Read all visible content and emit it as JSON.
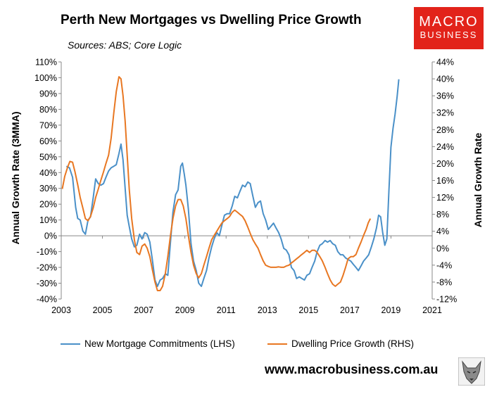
{
  "title": "Perth New Mortgages vs Dwelling Price Growth",
  "subtitle": "Sources: ABS; Core Logic",
  "logo": {
    "line1": "MACRO",
    "line2": "BUSINESS",
    "color": "#e2231a"
  },
  "website": "www.macrobusiness.com.au",
  "wolf_icon": "wolf-head-icon",
  "chart_data": {
    "type": "line",
    "xlim": [
      2003,
      2021
    ],
    "x_ticks": [
      "2003",
      "2005",
      "2007",
      "2009",
      "2011",
      "2013",
      "2015",
      "2017",
      "2019",
      "2021"
    ],
    "ylabel_left": "Annual Growth Rate (3MMA)",
    "ylim_left": [
      -40,
      110
    ],
    "y_ticks_left": [
      "-40%",
      "-30%",
      "-20%",
      "-10%",
      "0%",
      "10%",
      "20%",
      "30%",
      "40%",
      "50%",
      "60%",
      "70%",
      "80%",
      "90%",
      "100%",
      "110%"
    ],
    "ylabel_right": "Annual Growth Rate",
    "ylim_right": [
      -12,
      44
    ],
    "y_ticks_right": [
      "-12%",
      "-8%",
      "-4%",
      "0%",
      "4%",
      "8%",
      "12%",
      "16%",
      "20%",
      "24%",
      "28%",
      "32%",
      "36%",
      "40%",
      "44%"
    ],
    "grid": false,
    "legend_position": "bottom",
    "series": [
      {
        "name": "New Mortgage Commitments (LHS)",
        "axis": "left",
        "color": "#4a90c8",
        "points": [
          [
            2003.25,
            44
          ],
          [
            2003.4,
            43
          ],
          [
            2003.55,
            37
          ],
          [
            2003.7,
            18
          ],
          [
            2003.8,
            11
          ],
          [
            2003.92,
            10
          ],
          [
            2004.05,
            3
          ],
          [
            2004.17,
            1
          ],
          [
            2004.3,
            10
          ],
          [
            2004.42,
            12
          ],
          [
            2004.55,
            24
          ],
          [
            2004.67,
            36
          ],
          [
            2004.8,
            33
          ],
          [
            2004.92,
            32
          ],
          [
            2005.05,
            33
          ],
          [
            2005.17,
            37
          ],
          [
            2005.3,
            41
          ],
          [
            2005.42,
            43
          ],
          [
            2005.55,
            44
          ],
          [
            2005.67,
            45
          ],
          [
            2005.8,
            52
          ],
          [
            2005.9,
            58
          ],
          [
            2006.0,
            48
          ],
          [
            2006.1,
            30
          ],
          [
            2006.2,
            13
          ],
          [
            2006.3,
            6
          ],
          [
            2006.42,
            -2
          ],
          [
            2006.55,
            -7
          ],
          [
            2006.67,
            -6
          ],
          [
            2006.8,
            1
          ],
          [
            2006.92,
            -2
          ],
          [
            2007.05,
            2
          ],
          [
            2007.17,
            1
          ],
          [
            2007.3,
            -4
          ],
          [
            2007.42,
            -15
          ],
          [
            2007.55,
            -28
          ],
          [
            2007.67,
            -32
          ],
          [
            2007.8,
            -28
          ],
          [
            2007.92,
            -27
          ],
          [
            2008.05,
            -24
          ],
          [
            2008.17,
            -25
          ],
          [
            2008.3,
            -4
          ],
          [
            2008.42,
            15
          ],
          [
            2008.55,
            26
          ],
          [
            2008.67,
            29
          ],
          [
            2008.8,
            44
          ],
          [
            2008.88,
            46
          ],
          [
            2008.97,
            39
          ],
          [
            2009.05,
            32
          ],
          [
            2009.17,
            17
          ],
          [
            2009.3,
            -5
          ],
          [
            2009.42,
            -16
          ],
          [
            2009.55,
            -22
          ],
          [
            2009.67,
            -30
          ],
          [
            2009.8,
            -32
          ],
          [
            2009.92,
            -27
          ],
          [
            2010.05,
            -22
          ],
          [
            2010.17,
            -14
          ],
          [
            2010.3,
            -7
          ],
          [
            2010.42,
            -2
          ],
          [
            2010.55,
            2
          ],
          [
            2010.67,
            0
          ],
          [
            2010.8,
            7
          ],
          [
            2010.92,
            13
          ],
          [
            2011.05,
            14
          ],
          [
            2011.17,
            14
          ],
          [
            2011.3,
            19
          ],
          [
            2011.42,
            25
          ],
          [
            2011.55,
            24
          ],
          [
            2011.67,
            28
          ],
          [
            2011.8,
            32
          ],
          [
            2011.92,
            31
          ],
          [
            2012.05,
            34
          ],
          [
            2012.17,
            33
          ],
          [
            2012.3,
            25
          ],
          [
            2012.42,
            18
          ],
          [
            2012.55,
            21
          ],
          [
            2012.67,
            22
          ],
          [
            2012.8,
            14
          ],
          [
            2012.92,
            10
          ],
          [
            2013.05,
            4
          ],
          [
            2013.17,
            6
          ],
          [
            2013.3,
            8
          ],
          [
            2013.42,
            5
          ],
          [
            2013.55,
            2
          ],
          [
            2013.67,
            -2
          ],
          [
            2013.8,
            -8
          ],
          [
            2013.92,
            -9
          ],
          [
            2014.05,
            -12
          ],
          [
            2014.17,
            -20
          ],
          [
            2014.3,
            -22
          ],
          [
            2014.42,
            -27
          ],
          [
            2014.55,
            -26
          ],
          [
            2014.67,
            -27
          ],
          [
            2014.8,
            -28
          ],
          [
            2014.92,
            -25
          ],
          [
            2015.05,
            -24
          ],
          [
            2015.17,
            -20
          ],
          [
            2015.3,
            -16
          ],
          [
            2015.42,
            -10
          ],
          [
            2015.55,
            -6
          ],
          [
            2015.67,
            -5
          ],
          [
            2015.8,
            -3
          ],
          [
            2015.92,
            -4
          ],
          [
            2016.05,
            -3
          ],
          [
            2016.17,
            -5
          ],
          [
            2016.3,
            -6
          ],
          [
            2016.42,
            -10
          ],
          [
            2016.55,
            -12
          ],
          [
            2016.67,
            -12
          ],
          [
            2016.8,
            -14
          ],
          [
            2016.92,
            -15
          ],
          [
            2017.05,
            -16
          ],
          [
            2017.17,
            -18
          ],
          [
            2017.3,
            -20
          ],
          [
            2017.42,
            -22
          ],
          [
            2017.55,
            -19
          ],
          [
            2017.67,
            -16
          ],
          [
            2017.8,
            -14
          ],
          [
            2017.92,
            -12
          ],
          [
            2018.05,
            -7
          ],
          [
            2018.17,
            -2
          ],
          [
            2018.3,
            5
          ],
          [
            2018.4,
            13
          ],
          [
            2018.5,
            12
          ],
          [
            2018.6,
            2
          ],
          [
            2018.7,
            -6
          ],
          [
            2018.8,
            -2
          ],
          [
            2018.9,
            28
          ],
          [
            2019.0,
            56
          ],
          [
            2019.1,
            68
          ],
          [
            2019.2,
            77
          ],
          [
            2019.3,
            88
          ],
          [
            2019.38,
            99
          ]
        ]
      },
      {
        "name": "Dwelling Price Growth (RHS)",
        "axis": "right",
        "color": "#e87722",
        "points": [
          [
            2003.05,
            14
          ],
          [
            2003.17,
            17
          ],
          [
            2003.3,
            19
          ],
          [
            2003.42,
            20.5
          ],
          [
            2003.55,
            20.3
          ],
          [
            2003.67,
            18
          ],
          [
            2003.8,
            15
          ],
          [
            2003.92,
            12
          ],
          [
            2004.05,
            9.5
          ],
          [
            2004.17,
            7
          ],
          [
            2004.3,
            6.5
          ],
          [
            2004.42,
            7.5
          ],
          [
            2004.55,
            9.5
          ],
          [
            2004.67,
            12
          ],
          [
            2004.8,
            14
          ],
          [
            2004.92,
            16
          ],
          [
            2005.05,
            18
          ],
          [
            2005.17,
            20
          ],
          [
            2005.3,
            22
          ],
          [
            2005.42,
            26
          ],
          [
            2005.55,
            32
          ],
          [
            2005.67,
            37
          ],
          [
            2005.8,
            40.5
          ],
          [
            2005.9,
            40
          ],
          [
            2006.0,
            36
          ],
          [
            2006.1,
            30
          ],
          [
            2006.2,
            22
          ],
          [
            2006.3,
            14
          ],
          [
            2006.42,
            7
          ],
          [
            2006.55,
            2
          ],
          [
            2006.67,
            -1
          ],
          [
            2006.8,
            -1.5
          ],
          [
            2006.92,
            0.5
          ],
          [
            2007.05,
            1
          ],
          [
            2007.17,
            0
          ],
          [
            2007.3,
            -2
          ],
          [
            2007.42,
            -5
          ],
          [
            2007.55,
            -8
          ],
          [
            2007.67,
            -10
          ],
          [
            2007.8,
            -10
          ],
          [
            2007.92,
            -9
          ],
          [
            2008.05,
            -6
          ],
          [
            2008.17,
            -2
          ],
          [
            2008.3,
            3
          ],
          [
            2008.42,
            7
          ],
          [
            2008.55,
            10
          ],
          [
            2008.67,
            11.5
          ],
          [
            2008.8,
            11.5
          ],
          [
            2008.92,
            10
          ],
          [
            2009.05,
            7
          ],
          [
            2009.17,
            3
          ],
          [
            2009.3,
            -1
          ],
          [
            2009.42,
            -4
          ],
          [
            2009.55,
            -6
          ],
          [
            2009.67,
            -7
          ],
          [
            2009.8,
            -6
          ],
          [
            2009.92,
            -4
          ],
          [
            2010.05,
            -2
          ],
          [
            2010.17,
            0
          ],
          [
            2010.3,
            2
          ],
          [
            2010.42,
            3
          ],
          [
            2010.55,
            4
          ],
          [
            2010.67,
            5
          ],
          [
            2010.8,
            6
          ],
          [
            2010.92,
            6.5
          ],
          [
            2011.05,
            7
          ],
          [
            2011.17,
            7.5
          ],
          [
            2011.3,
            8.5
          ],
          [
            2011.42,
            9
          ],
          [
            2011.55,
            8.5
          ],
          [
            2011.67,
            8
          ],
          [
            2011.8,
            7.5
          ],
          [
            2011.92,
            6.5
          ],
          [
            2012.05,
            5
          ],
          [
            2012.17,
            3.5
          ],
          [
            2012.3,
            2
          ],
          [
            2012.42,
            1
          ],
          [
            2012.55,
            0
          ],
          [
            2012.67,
            -1.5
          ],
          [
            2012.8,
            -3
          ],
          [
            2012.92,
            -4
          ],
          [
            2013.05,
            -4.3
          ],
          [
            2013.17,
            -4.5
          ],
          [
            2013.3,
            -4.5
          ],
          [
            2013.42,
            -4.5
          ],
          [
            2013.55,
            -4.4
          ],
          [
            2013.67,
            -4.5
          ],
          [
            2013.8,
            -4.5
          ],
          [
            2013.92,
            -4.2
          ],
          [
            2014.05,
            -4
          ],
          [
            2014.17,
            -3.5
          ],
          [
            2014.3,
            -3
          ],
          [
            2014.42,
            -2.5
          ],
          [
            2014.55,
            -2
          ],
          [
            2014.67,
            -1.5
          ],
          [
            2014.8,
            -1
          ],
          [
            2014.92,
            -0.5
          ],
          [
            2015.05,
            -1
          ],
          [
            2015.17,
            -0.5
          ],
          [
            2015.3,
            -0.5
          ],
          [
            2015.42,
            -1
          ],
          [
            2015.55,
            -2
          ],
          [
            2015.67,
            -3
          ],
          [
            2015.8,
            -4.5
          ],
          [
            2015.92,
            -6
          ],
          [
            2016.05,
            -7.5
          ],
          [
            2016.17,
            -8.5
          ],
          [
            2016.3,
            -9
          ],
          [
            2016.42,
            -8.5
          ],
          [
            2016.55,
            -8
          ],
          [
            2016.67,
            -6.5
          ],
          [
            2016.8,
            -4.5
          ],
          [
            2016.92,
            -2.5
          ],
          [
            2017.05,
            -2
          ],
          [
            2017.17,
            -2
          ],
          [
            2017.3,
            -1.5
          ],
          [
            2017.42,
            0
          ],
          [
            2017.55,
            1.5
          ],
          [
            2017.67,
            3
          ],
          [
            2017.8,
            4.5
          ],
          [
            2017.9,
            6
          ],
          [
            2018.0,
            7
          ]
        ]
      }
    ]
  }
}
